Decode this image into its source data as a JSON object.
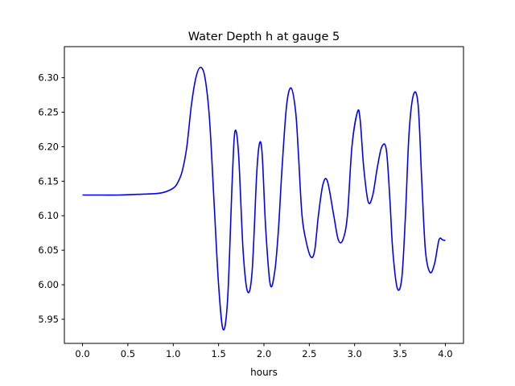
{
  "chart_data": {
    "type": "line",
    "title": "Water Depth h at gauge 5",
    "xlabel": "hours",
    "ylabel": "",
    "xlim": [
      -0.2,
      4.2
    ],
    "ylim": [
      5.915,
      6.345
    ],
    "xticks": [
      0.0,
      0.5,
      1.0,
      1.5,
      2.0,
      2.5,
      3.0,
      3.5,
      4.0
    ],
    "xtick_labels": [
      "0.0",
      "0.5",
      "1.0",
      "1.5",
      "2.0",
      "2.5",
      "3.0",
      "3.5",
      "4.0"
    ],
    "yticks": [
      5.95,
      6.0,
      6.05,
      6.1,
      6.15,
      6.2,
      6.25,
      6.3
    ],
    "ytick_labels": [
      "5.95",
      "6.00",
      "6.05",
      "6.10",
      "6.15",
      "6.20",
      "6.25",
      "6.30"
    ],
    "grid": false,
    "series": [
      {
        "color": "#0000ff",
        "x": [
          0.0,
          0.2,
          0.4,
          0.6,
          0.8,
          0.9,
          1.0,
          1.05,
          1.1,
          1.15,
          1.2,
          1.25,
          1.3,
          1.35,
          1.4,
          1.45,
          1.5,
          1.55,
          1.6,
          1.65,
          1.68,
          1.72,
          1.77,
          1.82,
          1.87,
          1.92,
          1.95,
          1.98,
          2.02,
          2.07,
          2.12,
          2.16,
          2.2,
          2.25,
          2.3,
          2.35,
          2.38,
          2.42,
          2.47,
          2.52,
          2.56,
          2.6,
          2.65,
          2.7,
          2.77,
          2.82,
          2.87,
          2.92,
          2.97,
          3.03,
          3.06,
          3.1,
          3.15,
          3.2,
          3.25,
          3.3,
          3.35,
          3.39,
          3.42,
          3.47,
          3.52,
          3.56,
          3.6,
          3.65,
          3.7,
          3.74,
          3.78,
          3.83,
          3.88,
          3.93,
          3.97,
          4.0
        ],
        "y": [
          6.13,
          6.13,
          6.13,
          6.131,
          6.132,
          6.134,
          6.14,
          6.148,
          6.165,
          6.2,
          6.26,
          6.3,
          6.315,
          6.3,
          6.24,
          6.12,
          6.0,
          5.935,
          5.98,
          6.15,
          6.222,
          6.19,
          6.05,
          5.99,
          6.02,
          6.16,
          6.204,
          6.19,
          6.08,
          6.0,
          6.02,
          6.08,
          6.17,
          6.26,
          6.285,
          6.25,
          6.19,
          6.1,
          6.06,
          6.04,
          6.05,
          6.1,
          6.145,
          6.15,
          6.1,
          6.065,
          6.065,
          6.1,
          6.2,
          6.25,
          6.24,
          6.17,
          6.12,
          6.13,
          6.17,
          6.2,
          6.195,
          6.12,
          6.05,
          5.995,
          6.01,
          6.1,
          6.22,
          6.276,
          6.26,
          6.15,
          6.05,
          6.018,
          6.03,
          6.065,
          6.065,
          6.064
        ]
      }
    ]
  }
}
